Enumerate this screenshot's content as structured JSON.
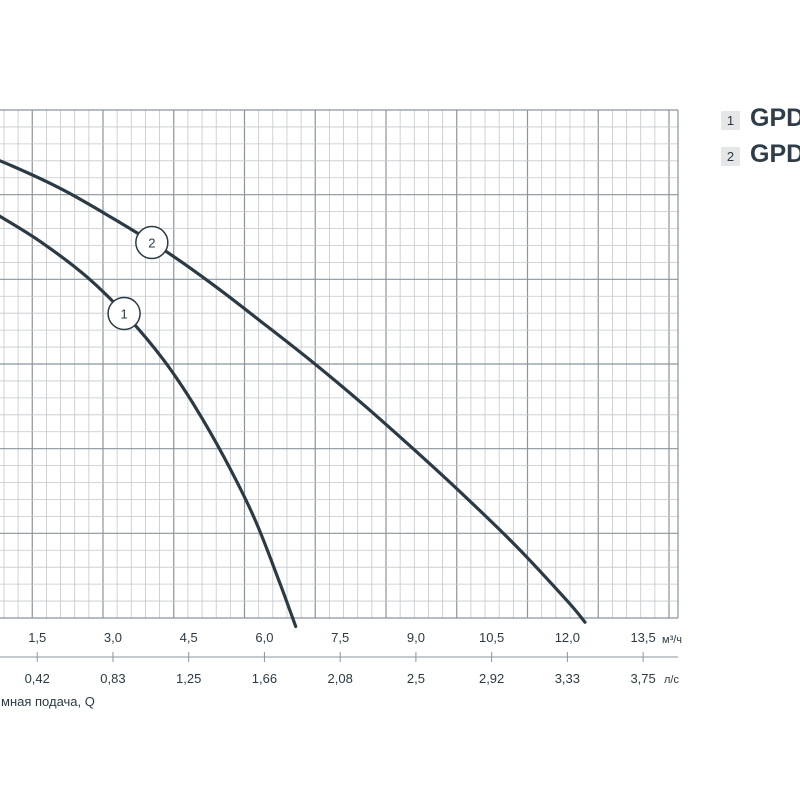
{
  "chart_data": {
    "type": "line",
    "xlabel": "мная подача, Q",
    "x_unit_primary": "м³/ч",
    "x_unit_secondary": "л/с",
    "x_ticks_primary": [
      "1,5",
      "3,0",
      "4,5",
      "6,0",
      "7,5",
      "9,0",
      "10,5",
      "12,0",
      "13,5"
    ],
    "x_ticks_secondary": [
      "0,42",
      "0,83",
      "1,25",
      "1,66",
      "2,08",
      "2,5",
      "2,92",
      "3,33",
      "3,75"
    ],
    "xlim": [
      0,
      14.3
    ],
    "ylim": [
      0,
      6
    ],
    "grid": true,
    "legend_placement": "top-right",
    "legend": [
      {
        "key": "1",
        "text": "GPD"
      },
      {
        "key": "2",
        "text": "GPD"
      }
    ],
    "series": [
      {
        "key": "1",
        "x": [
          0,
          0.8,
          1.6,
          2.5,
          3.3,
          4.0,
          4.6,
          5.2,
          5.8,
          6.3,
          6.62
        ],
        "y": [
          5.0,
          4.73,
          4.43,
          4.02,
          3.55,
          3.05,
          2.52,
          1.9,
          1.18,
          0.42,
          -0.1
        ]
      },
      {
        "key": "2",
        "x": [
          0,
          1.0,
          2.0,
          3.0,
          4.0,
          5.0,
          6.0,
          7.0,
          8.0,
          9.0,
          10.0,
          11.0,
          12.0,
          12.35
        ],
        "y": [
          5.58,
          5.34,
          5.06,
          4.72,
          4.35,
          3.93,
          3.47,
          3.0,
          2.5,
          1.97,
          1.42,
          0.84,
          0.2,
          -0.05
        ]
      }
    ]
  }
}
